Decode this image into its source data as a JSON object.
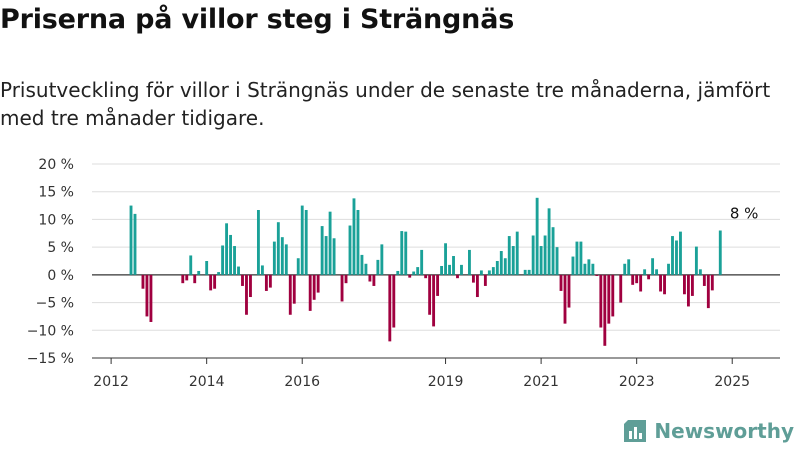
{
  "title": "Priserna på villor steg i Strängnäs",
  "subtitle": "Prisutveckling för villor i Strängnäs under de senaste tre månaderna, jämfört med tre månader tidigare.",
  "brand": {
    "name": "Newsworthy",
    "icon": "newsworthy-logo-icon"
  },
  "colors": {
    "positive": "#1aa198",
    "negative": "#a0003f",
    "grid": "#dddddd",
    "axis": "#333333",
    "brand": "#5f9e97"
  },
  "chart_data": {
    "type": "bar",
    "title": "Priserna på villor steg i Strängnäs",
    "ylim": [
      -15,
      20
    ],
    "xlim": [
      2011.6,
      2026.0
    ],
    "y_ticks": [
      {
        "value": -15,
        "label": "−15 %"
      },
      {
        "value": -10,
        "label": "−10 %"
      },
      {
        "value": -5,
        "label": "−5 %"
      },
      {
        "value": 0,
        "label": "0 %"
      },
      {
        "value": 5,
        "label": "5 %"
      },
      {
        "value": 10,
        "label": "10 %"
      },
      {
        "value": 15,
        "label": "15 %"
      },
      {
        "value": 20,
        "label": "20 %"
      }
    ],
    "x_ticks": [
      {
        "value": 2012,
        "label": "2012"
      },
      {
        "value": 2014,
        "label": "2014"
      },
      {
        "value": 2016,
        "label": "2016"
      },
      {
        "value": 2019,
        "label": "2019"
      },
      {
        "value": 2021,
        "label": "2021"
      },
      {
        "value": 2023,
        "label": "2023"
      },
      {
        "value": 2025,
        "label": "2025"
      }
    ],
    "grid": true,
    "annotation": {
      "text": "8 %",
      "x": 2025.25,
      "y": 8
    },
    "start_month": "2012-06",
    "values": [
      12.5,
      11,
      0,
      -2.5,
      -7.5,
      -8.5,
      0,
      0,
      0,
      0,
      0,
      0,
      0,
      -1.5,
      -1,
      3.5,
      -1.5,
      0.7,
      0,
      2.5,
      -2.8,
      -2.5,
      0.5,
      5.3,
      9.3,
      7.2,
      5.2,
      1.5,
      -2,
      -7.2,
      -4,
      0,
      11.7,
      1.7,
      -2.9,
      -2.3,
      6,
      9.5,
      6.8,
      5.5,
      -7.2,
      -5.2,
      3,
      12.5,
      11.7,
      -6.5,
      -4.5,
      -3.2,
      8.8,
      7,
      11.4,
      6.6,
      0,
      -4.8,
      -1.5,
      8.9,
      13.8,
      11.7,
      3.6,
      2,
      -1.2,
      -2,
      2.7,
      5.5,
      0,
      -12,
      -9.5,
      0.7,
      7.9,
      7.8,
      -0.5,
      0.6,
      1.4,
      4.5,
      -0.6,
      -7.2,
      -9.3,
      -3.8,
      1.6,
      5.7,
      1.8,
      3.4,
      -0.6,
      1.8,
      0,
      4.5,
      -1.4,
      -4,
      0.8,
      -2,
      0.8,
      1.4,
      2.5,
      4.3,
      3,
      7,
      5.2,
      7.8,
      0,
      0.9,
      0.9,
      7.1,
      13.9,
      5.2,
      7.1,
      12,
      8.6,
      5,
      -2.9,
      -8.8,
      -5.9,
      3.3,
      6,
      6,
      2,
      2.8,
      2,
      -0.2,
      -9.5,
      -12.8,
      -8.8,
      -7.5,
      0,
      -5,
      2,
      2.8,
      -1.8,
      -1.5,
      -3,
      1,
      -0.8,
      3,
      1,
      -3,
      -3.5,
      2,
      7,
      6.2,
      7.8,
      -3.5,
      -5.7,
      -3.8,
      5.1,
      1,
      -2,
      -6,
      -2.8,
      0,
      8
    ]
  }
}
